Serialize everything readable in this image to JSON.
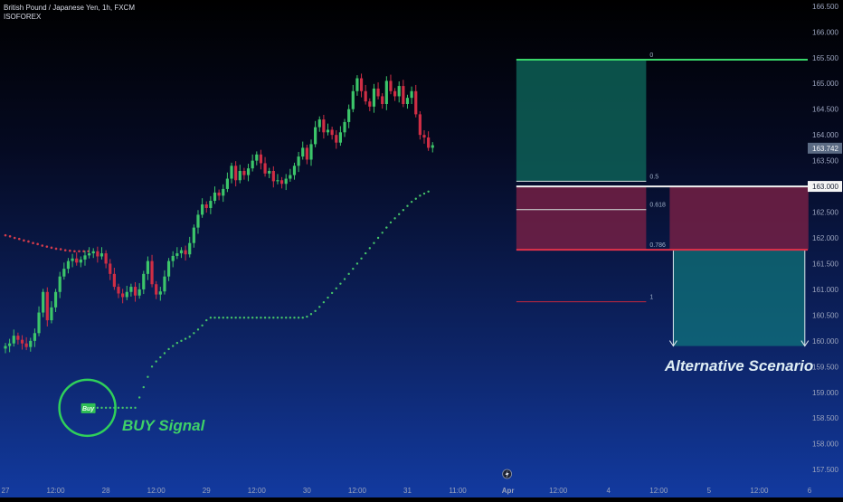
{
  "chart_data": {
    "type": "candlestick",
    "title": "British Pound / Japanese Yen, 1h, FXCM",
    "subtitle": "ISOFOREX",
    "colors": {
      "up": "#3cc56a",
      "down": "#cf2e45",
      "upper_trail": "#d23b4b",
      "lower_trail": "#45c46a"
    },
    "y_ticks": [
      "166.500",
      "166.000",
      "165.500",
      "165.000",
      "164.500",
      "164.000",
      "163.500",
      "163.000",
      "162.500",
      "162.000",
      "161.500",
      "161.000",
      "160.500",
      "160.000",
      "159.500",
      "159.000",
      "158.500",
      "158.000",
      "157.500"
    ],
    "y_tick_values": [
      166.5,
      166,
      165.5,
      165,
      164.5,
      164,
      163.5,
      163,
      162.5,
      162,
      161.5,
      161,
      160.5,
      160,
      159.5,
      159,
      158.5,
      158,
      157.5
    ],
    "ylim": [
      157.45,
      166.55
    ],
    "x_tick_labels": [
      "27",
      "12:00",
      "28",
      "12:00",
      "29",
      "12:00",
      "30",
      "12:00",
      "31",
      "11:00",
      "Apr",
      "12:00",
      "4",
      "12:00",
      "5",
      "12:00",
      "6"
    ],
    "x_tick_index": [
      0,
      12,
      24,
      36,
      48,
      60,
      72,
      84,
      96,
      108,
      120,
      132,
      144,
      156,
      168,
      180,
      192
    ],
    "price_axis": {
      "current_price": "163.742",
      "current_value": 163.742,
      "level_price": "163.000",
      "level_value": 163.0
    },
    "closes": [
      159.9,
      159.95,
      160.1,
      160.02,
      159.95,
      159.88,
      160.0,
      160.15,
      160.55,
      160.95,
      160.4,
      160.65,
      160.95,
      161.25,
      161.4,
      161.55,
      161.6,
      161.52,
      161.58,
      161.66,
      161.7,
      161.74,
      161.64,
      161.7,
      161.5,
      161.3,
      161.05,
      160.92,
      160.85,
      160.95,
      161.05,
      160.88,
      161.0,
      161.3,
      161.55,
      161.1,
      160.9,
      160.96,
      161.25,
      161.55,
      161.65,
      161.7,
      161.76,
      161.68,
      161.9,
      162.2,
      162.45,
      162.65,
      162.58,
      162.72,
      162.88,
      162.82,
      162.95,
      163.15,
      163.4,
      163.12,
      163.3,
      163.22,
      163.35,
      163.5,
      163.62,
      163.45,
      163.25,
      163.3,
      163.1,
      163.12,
      163.05,
      163.15,
      163.22,
      163.4,
      163.58,
      163.75,
      163.52,
      163.82,
      164.15,
      164.3,
      164.05,
      164.1,
      164.0,
      163.85,
      164.05,
      164.25,
      164.5,
      164.85,
      165.1,
      164.85,
      164.65,
      164.55,
      164.9,
      164.75,
      164.6,
      165.05,
      164.85,
      164.75,
      164.95,
      164.6,
      164.72,
      164.85,
      164.4,
      164.0,
      163.95,
      163.75,
      163.8
    ],
    "upper_trail": [
      162.05,
      162.03,
      162.0,
      161.98,
      161.95,
      161.93,
      161.9,
      161.88,
      161.85,
      161.83,
      161.81,
      161.79,
      161.78,
      161.76,
      161.75,
      161.74,
      161.74,
      161.74,
      161.74
    ],
    "upper_trail_start_index": 0,
    "lower_trail": [
      158.7,
      158.7,
      158.7,
      158.7,
      158.7,
      158.7,
      158.7,
      158.7,
      158.7,
      158.7,
      158.7,
      158.7,
      158.9,
      159.1,
      159.3,
      159.5,
      159.6,
      159.68,
      159.76,
      159.84,
      159.9,
      159.96,
      160.0,
      160.04,
      160.08,
      160.15,
      160.22,
      160.3,
      160.4,
      160.45,
      160.45,
      160.45,
      160.45,
      160.45,
      160.45,
      160.45,
      160.45,
      160.45,
      160.45,
      160.45,
      160.45,
      160.45,
      160.45,
      160.45,
      160.45,
      160.45,
      160.45,
      160.45,
      160.45,
      160.45,
      160.45,
      160.45,
      160.47,
      160.52,
      160.58,
      160.66,
      160.75,
      160.84,
      160.93,
      161.02,
      161.11,
      161.2,
      161.3,
      161.4,
      161.5,
      161.6,
      161.7,
      161.8,
      161.9,
      162.0,
      162.1,
      162.2,
      162.3,
      162.38,
      162.46,
      162.54,
      162.62,
      162.7,
      162.76,
      162.82,
      162.86,
      162.9
    ],
    "lower_trail_start_index": 20,
    "fibonacci": {
      "levels": [
        {
          "label": "0",
          "value": 165.46
        },
        {
          "label": "0.5",
          "value": 163.1
        },
        {
          "label": "0.618",
          "value": 162.55
        },
        {
          "label": "0.786",
          "value": 161.77
        },
        {
          "label": "1",
          "value": 160.76
        }
      ],
      "start_index": 122,
      "end_index": 153,
      "green_zone": [
        163.1,
        165.46
      ],
      "red_zone": [
        161.77,
        163.0
      ],
      "red_zone_extension": [
        161.77,
        163.0
      ],
      "teal_zone": [
        159.9,
        161.77
      ]
    },
    "annotations": {
      "buy_tag": "Buy",
      "buy_signal": "BUY Signal",
      "alternative": "Alternative Scenario"
    }
  }
}
